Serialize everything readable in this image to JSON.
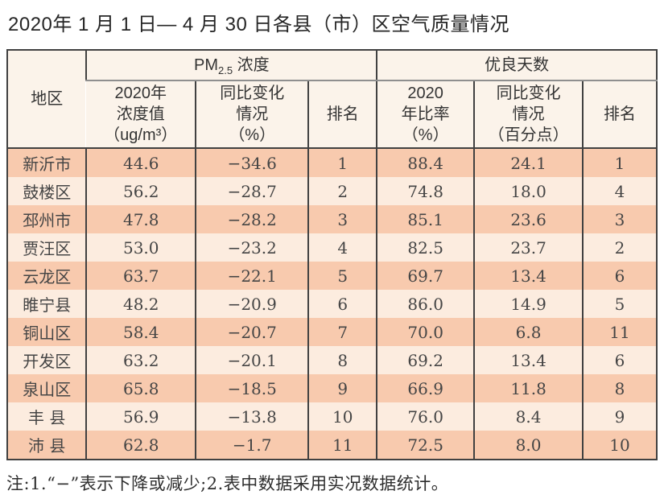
{
  "page": {
    "title": "2020年 1 月 1 日— 4 月 30 日各县（市）区空气质量情况",
    "footnote": "注:1.“−”表示下降或减少;2.表中数据采用实况数据统计。"
  },
  "colors": {
    "row_stripe_dark": "#f8caae",
    "row_stripe_light": "#fcecdf",
    "header_background": "#fbf3ea",
    "table_border": "#414141",
    "group_divider": "#8f8f8f"
  },
  "table": {
    "corner_header": "地区",
    "group_pm": {
      "prefix": "PM",
      "sub": "2.5",
      "suffix": " 浓度"
    },
    "group_good_days": "优良天数",
    "column_headers": {
      "pm_value": "2020年\n浓度值\n（ug/m³）",
      "pm_change": "同比变化\n情况\n（%）",
      "pm_rank": "排名",
      "good_rate": "2020\n年比率\n（%）",
      "good_change": "同比变化\n情况\n（百分点）",
      "good_rank": "排名"
    },
    "rows": [
      [
        "新沂市",
        "44.6",
        "−34.6",
        "1",
        "88.4",
        "24.1",
        "1"
      ],
      [
        "鼓楼区",
        "56.2",
        "−28.7",
        "2",
        "74.8",
        "18.0",
        "4"
      ],
      [
        "邳州市",
        "47.8",
        "−28.2",
        "3",
        "85.1",
        "23.6",
        "3"
      ],
      [
        "贾汪区",
        "53.0",
        "−23.2",
        "4",
        "82.5",
        "23.7",
        "2"
      ],
      [
        "云龙区",
        "63.7",
        "−22.1",
        "5",
        "69.7",
        "13.4",
        "6"
      ],
      [
        "睢宁县",
        "48.2",
        "−20.9",
        "6",
        "86.0",
        "14.9",
        "5"
      ],
      [
        "铜山区",
        "58.4",
        "−20.7",
        "7",
        "70.0",
        "6.8",
        "11"
      ],
      [
        "开发区",
        "63.2",
        "−20.1",
        "8",
        "69.2",
        "13.4",
        "6"
      ],
      [
        "泉山区",
        "65.8",
        "−18.5",
        "9",
        "66.9",
        "11.8",
        "8"
      ],
      [
        "丰 县",
        "56.9",
        "−13.8",
        "10",
        "76.0",
        "8.4",
        "9"
      ],
      [
        "沛 县",
        "62.8",
        "−1.7",
        "11",
        "72.5",
        "8.0",
        "10"
      ]
    ]
  },
  "chart_data": {
    "type": "table",
    "title": "2020年 1 月 1 日— 4 月 30 日各县（市）区空气质量情况",
    "columns": [
      "地区",
      "PM2.5浓度 2020年浓度值（ug/m³）",
      "PM2.5浓度 同比变化情况（%）",
      "PM2.5浓度 排名",
      "优良天数 2020年比率（%）",
      "优良天数 同比变化情况（百分点）",
      "优良天数 排名"
    ],
    "rows": [
      [
        "新沂市",
        44.6,
        -34.6,
        1,
        88.4,
        24.1,
        1
      ],
      [
        "鼓楼区",
        56.2,
        -28.7,
        2,
        74.8,
        18.0,
        4
      ],
      [
        "邳州市",
        47.8,
        -28.2,
        3,
        85.1,
        23.6,
        3
      ],
      [
        "贾汪区",
        53.0,
        -23.2,
        4,
        82.5,
        23.7,
        2
      ],
      [
        "云龙区",
        63.7,
        -22.1,
        5,
        69.7,
        13.4,
        6
      ],
      [
        "睢宁县",
        48.2,
        -20.9,
        6,
        86.0,
        14.9,
        5
      ],
      [
        "铜山区",
        58.4,
        -20.7,
        7,
        70.0,
        6.8,
        11
      ],
      [
        "开发区",
        63.2,
        -20.1,
        8,
        69.2,
        13.4,
        6
      ],
      [
        "泉山区",
        65.8,
        -18.5,
        9,
        66.9,
        11.8,
        8
      ],
      [
        "丰县",
        56.9,
        -13.8,
        10,
        76.0,
        8.4,
        9
      ],
      [
        "沛县",
        62.8,
        -1.7,
        11,
        72.5,
        8.0,
        10
      ]
    ]
  }
}
